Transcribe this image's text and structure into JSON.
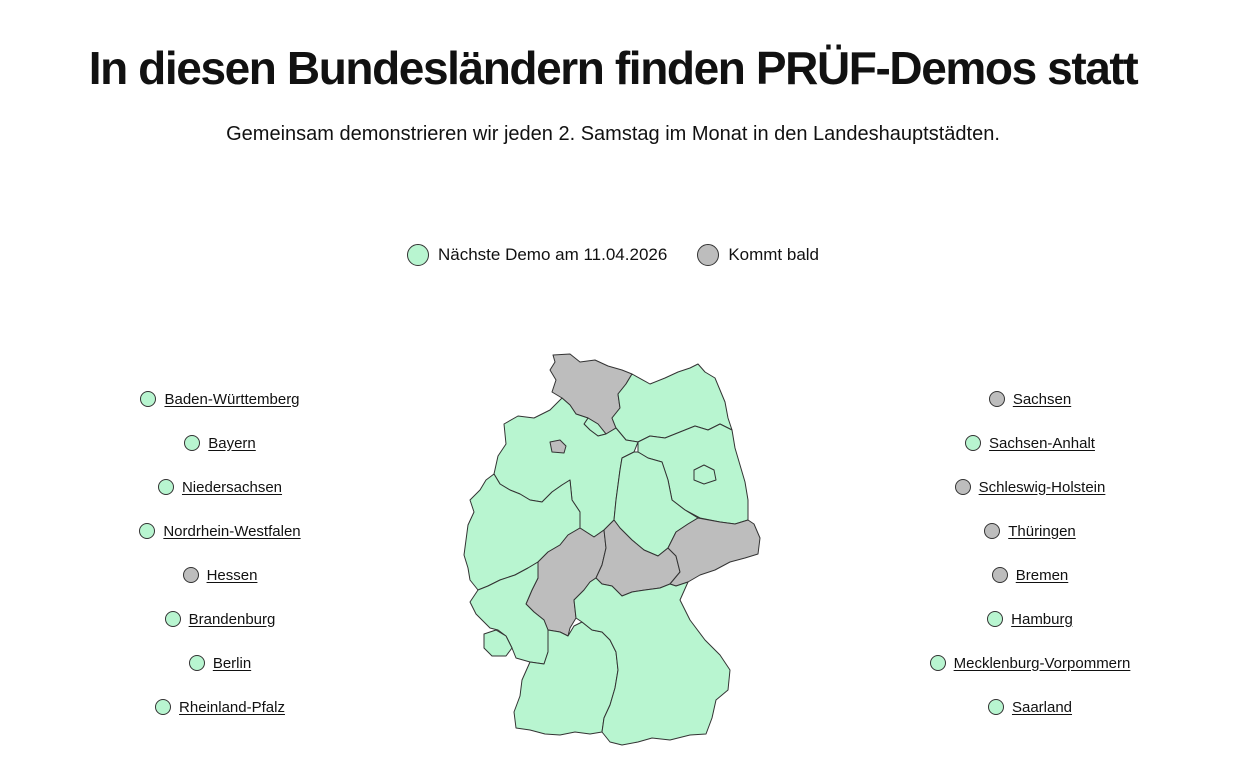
{
  "header": {
    "title": "In diesen Bundesländern finden PRÜF-Demos statt",
    "subtitle": "Gemeinsam demonstrieren wir jeden 2. Samstag im Monat in den Landeshauptstädten."
  },
  "legend": {
    "active_label": "Nächste Demo am 11.04.2026",
    "soon_label": "Kommt bald"
  },
  "colors": {
    "active": "#b8f5d0",
    "soon": "#bdbdbd",
    "outline": "#333333"
  },
  "states_left": [
    {
      "name": "Baden-Württemberg",
      "status": "active"
    },
    {
      "name": "Bayern",
      "status": "active"
    },
    {
      "name": "Niedersachsen",
      "status": "active"
    },
    {
      "name": "Nordrhein-Westfalen",
      "status": "active"
    },
    {
      "name": "Hessen",
      "status": "soon"
    },
    {
      "name": "Brandenburg",
      "status": "active"
    },
    {
      "name": "Berlin",
      "status": "active"
    },
    {
      "name": "Rheinland-Pfalz",
      "status": "active"
    }
  ],
  "states_right": [
    {
      "name": "Sachsen",
      "status": "soon"
    },
    {
      "name": "Sachsen-Anhalt",
      "status": "active"
    },
    {
      "name": "Schleswig-Holstein",
      "status": "soon"
    },
    {
      "name": "Thüringen",
      "status": "soon"
    },
    {
      "name": "Bremen",
      "status": "soon"
    },
    {
      "name": "Hamburg",
      "status": "active"
    },
    {
      "name": "Mecklenburg-Vorpommern",
      "status": "active"
    },
    {
      "name": "Saarland",
      "status": "active"
    }
  ],
  "map_status": {
    "schleswig-holstein": "soon",
    "hamburg": "active",
    "bremen": "soon",
    "mecklenburg-vorpommern": "active",
    "niedersachsen": "active",
    "berlin": "active",
    "brandenburg": "active",
    "sachsen-anhalt": "active",
    "nordrhein-westfalen": "active",
    "hessen": "soon",
    "thueringen": "soon",
    "sachsen": "soon",
    "rheinland-pfalz": "active",
    "saarland": "active",
    "baden-wuerttemberg": "active",
    "bayern": "active"
  }
}
